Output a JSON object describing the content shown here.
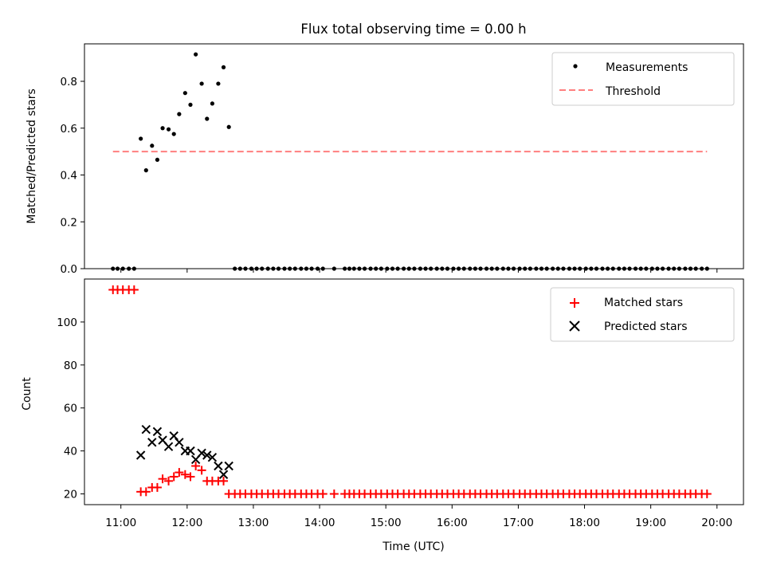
{
  "chart_data": {
    "type": "scatter",
    "title": "Flux total observing time = 0.00 h",
    "xlabel": "Time (UTC)",
    "x_ticks": [
      "11:00",
      "12:00",
      "13:00",
      "14:00",
      "15:00",
      "16:00",
      "17:00",
      "18:00",
      "19:00",
      "20:00"
    ],
    "x_range_hours": [
      10.45,
      20.4
    ],
    "panels": [
      {
        "id": "ratio",
        "ylabel": "Matched/Predicted stars",
        "ylim": [
          0,
          0.96
        ],
        "y_ticks": [
          "0.0",
          "0.2",
          "0.4",
          "0.6",
          "0.8"
        ],
        "y_tick_values": [
          0,
          0.2,
          0.4,
          0.6,
          0.8
        ],
        "legend_position": "top-right",
        "series": [
          {
            "name": "Measurements",
            "marker": "dot",
            "color": "#000000",
            "points": [
              [
                10.88,
                0
              ],
              [
                10.95,
                0
              ],
              [
                11.03,
                0
              ],
              [
                11.12,
                0
              ],
              [
                11.2,
                0
              ],
              [
                11.3,
                0.555
              ],
              [
                11.38,
                0.42
              ],
              [
                11.47,
                0.525
              ],
              [
                11.55,
                0.465
              ],
              [
                11.63,
                0.6
              ],
              [
                11.72,
                0.595
              ],
              [
                11.8,
                0.575
              ],
              [
                11.88,
                0.66
              ],
              [
                11.97,
                0.75
              ],
              [
                12.05,
                0.7
              ],
              [
                12.13,
                0.915
              ],
              [
                12.22,
                0.79
              ],
              [
                12.3,
                0.64
              ],
              [
                12.38,
                0.705
              ],
              [
                12.47,
                0.79
              ],
              [
                12.55,
                0.86
              ],
              [
                12.63,
                0.605
              ],
              [
                12.72,
                0
              ],
              [
                12.8,
                0
              ],
              [
                12.88,
                0
              ],
              [
                12.97,
                0
              ],
              [
                13.05,
                0
              ],
              [
                13.13,
                0
              ],
              [
                13.22,
                0
              ],
              [
                13.3,
                0
              ],
              [
                13.38,
                0
              ],
              [
                13.47,
                0
              ],
              [
                13.55,
                0
              ],
              [
                13.63,
                0
              ],
              [
                13.72,
                0
              ],
              [
                13.8,
                0
              ],
              [
                13.88,
                0
              ],
              [
                13.97,
                0
              ],
              [
                14.05,
                0
              ],
              [
                14.22,
                0
              ],
              [
                14.38,
                0
              ],
              [
                14.45,
                0
              ],
              [
                14.52,
                0
              ],
              [
                14.6,
                0
              ],
              [
                14.68,
                0
              ],
              [
                14.77,
                0
              ],
              [
                14.85,
                0
              ],
              [
                14.93,
                0
              ],
              [
                15.02,
                0
              ],
              [
                15.1,
                0
              ],
              [
                15.18,
                0
              ],
              [
                15.27,
                0
              ],
              [
                15.35,
                0
              ],
              [
                15.43,
                0
              ],
              [
                15.52,
                0
              ],
              [
                15.6,
                0
              ],
              [
                15.68,
                0
              ],
              [
                15.77,
                0
              ],
              [
                15.85,
                0
              ],
              [
                15.93,
                0
              ],
              [
                16.02,
                0
              ],
              [
                16.1,
                0
              ],
              [
                16.18,
                0
              ],
              [
                16.27,
                0
              ],
              [
                16.35,
                0
              ],
              [
                16.43,
                0
              ],
              [
                16.52,
                0
              ],
              [
                16.6,
                0
              ],
              [
                16.68,
                0
              ],
              [
                16.77,
                0
              ],
              [
                16.85,
                0
              ],
              [
                16.93,
                0
              ],
              [
                17.02,
                0
              ],
              [
                17.1,
                0
              ],
              [
                17.18,
                0
              ],
              [
                17.27,
                0
              ],
              [
                17.35,
                0
              ],
              [
                17.43,
                0
              ],
              [
                17.52,
                0
              ],
              [
                17.6,
                0
              ],
              [
                17.68,
                0
              ],
              [
                17.77,
                0
              ],
              [
                17.85,
                0
              ],
              [
                17.93,
                0
              ],
              [
                18.02,
                0
              ],
              [
                18.1,
                0
              ],
              [
                18.18,
                0
              ],
              [
                18.27,
                0
              ],
              [
                18.35,
                0
              ],
              [
                18.43,
                0
              ],
              [
                18.52,
                0
              ],
              [
                18.6,
                0
              ],
              [
                18.68,
                0
              ],
              [
                18.77,
                0
              ],
              [
                18.85,
                0
              ],
              [
                18.93,
                0
              ],
              [
                19.02,
                0
              ],
              [
                19.1,
                0
              ],
              [
                19.18,
                0
              ],
              [
                19.27,
                0
              ],
              [
                19.35,
                0
              ],
              [
                19.43,
                0
              ],
              [
                19.52,
                0
              ],
              [
                19.6,
                0
              ],
              [
                19.68,
                0
              ],
              [
                19.77,
                0
              ],
              [
                19.85,
                0
              ]
            ]
          },
          {
            "name": "Threshold",
            "marker": "dashed-line",
            "color": "#ff7f7f",
            "points": [
              [
                10.88,
                0.5
              ],
              [
                19.85,
                0.5
              ]
            ]
          }
        ]
      },
      {
        "id": "count",
        "ylabel": "Count",
        "ylim": [
          15,
          120
        ],
        "y_ticks": [
          "20",
          "40",
          "60",
          "80",
          "100"
        ],
        "y_tick_values": [
          20,
          40,
          60,
          80,
          100
        ],
        "legend_position": "top-right",
        "series": [
          {
            "name": "Matched stars",
            "marker": "plus",
            "color": "#ff0000",
            "points": [
              [
                10.88,
                115
              ],
              [
                10.95,
                115
              ],
              [
                11.03,
                115
              ],
              [
                11.12,
                115
              ],
              [
                11.2,
                115
              ],
              [
                11.3,
                21
              ],
              [
                11.38,
                21
              ],
              [
                11.47,
                23
              ],
              [
                11.55,
                23
              ],
              [
                11.63,
                27
              ],
              [
                11.72,
                26
              ],
              [
                11.8,
                28
              ],
              [
                11.88,
                30
              ],
              [
                11.97,
                29
              ],
              [
                12.05,
                28
              ],
              [
                12.13,
                33
              ],
              [
                12.22,
                31
              ],
              [
                12.3,
                26
              ],
              [
                12.38,
                26
              ],
              [
                12.47,
                26
              ],
              [
                12.55,
                26
              ],
              [
                12.63,
                20
              ],
              [
                12.72,
                20
              ],
              [
                12.8,
                20
              ],
              [
                12.88,
                20
              ],
              [
                12.97,
                20
              ],
              [
                13.05,
                20
              ],
              [
                13.13,
                20
              ],
              [
                13.22,
                20
              ],
              [
                13.3,
                20
              ],
              [
                13.38,
                20
              ],
              [
                13.47,
                20
              ],
              [
                13.55,
                20
              ],
              [
                13.63,
                20
              ],
              [
                13.72,
                20
              ],
              [
                13.8,
                20
              ],
              [
                13.88,
                20
              ],
              [
                13.97,
                20
              ],
              [
                14.05,
                20
              ],
              [
                14.22,
                20
              ],
              [
                14.38,
                20
              ],
              [
                14.45,
                20
              ],
              [
                14.52,
                20
              ],
              [
                14.6,
                20
              ],
              [
                14.68,
                20
              ],
              [
                14.77,
                20
              ],
              [
                14.85,
                20
              ],
              [
                14.93,
                20
              ],
              [
                15.02,
                20
              ],
              [
                15.1,
                20
              ],
              [
                15.18,
                20
              ],
              [
                15.27,
                20
              ],
              [
                15.35,
                20
              ],
              [
                15.43,
                20
              ],
              [
                15.52,
                20
              ],
              [
                15.6,
                20
              ],
              [
                15.68,
                20
              ],
              [
                15.77,
                20
              ],
              [
                15.85,
                20
              ],
              [
                15.93,
                20
              ],
              [
                16.02,
                20
              ],
              [
                16.1,
                20
              ],
              [
                16.18,
                20
              ],
              [
                16.27,
                20
              ],
              [
                16.35,
                20
              ],
              [
                16.43,
                20
              ],
              [
                16.52,
                20
              ],
              [
                16.6,
                20
              ],
              [
                16.68,
                20
              ],
              [
                16.77,
                20
              ],
              [
                16.85,
                20
              ],
              [
                16.93,
                20
              ],
              [
                17.02,
                20
              ],
              [
                17.1,
                20
              ],
              [
                17.18,
                20
              ],
              [
                17.27,
                20
              ],
              [
                17.35,
                20
              ],
              [
                17.43,
                20
              ],
              [
                17.52,
                20
              ],
              [
                17.6,
                20
              ],
              [
                17.68,
                20
              ],
              [
                17.77,
                20
              ],
              [
                17.85,
                20
              ],
              [
                17.93,
                20
              ],
              [
                18.02,
                20
              ],
              [
                18.1,
                20
              ],
              [
                18.18,
                20
              ],
              [
                18.27,
                20
              ],
              [
                18.35,
                20
              ],
              [
                18.43,
                20
              ],
              [
                18.52,
                20
              ],
              [
                18.6,
                20
              ],
              [
                18.68,
                20
              ],
              [
                18.77,
                20
              ],
              [
                18.85,
                20
              ],
              [
                18.93,
                20
              ],
              [
                19.02,
                20
              ],
              [
                19.1,
                20
              ],
              [
                19.18,
                20
              ],
              [
                19.27,
                20
              ],
              [
                19.35,
                20
              ],
              [
                19.43,
                20
              ],
              [
                19.52,
                20
              ],
              [
                19.6,
                20
              ],
              [
                19.68,
                20
              ],
              [
                19.77,
                20
              ],
              [
                19.85,
                20
              ]
            ]
          },
          {
            "name": "Predicted stars",
            "marker": "x",
            "color": "#000000",
            "points": [
              [
                11.3,
                38
              ],
              [
                11.38,
                50
              ],
              [
                11.47,
                44
              ],
              [
                11.55,
                49
              ],
              [
                11.63,
                45
              ],
              [
                11.72,
                42
              ],
              [
                11.8,
                47
              ],
              [
                11.88,
                44
              ],
              [
                11.97,
                40
              ],
              [
                12.05,
                40
              ],
              [
                12.13,
                36
              ],
              [
                12.22,
                39
              ],
              [
                12.3,
                38
              ],
              [
                12.38,
                37
              ],
              [
                12.47,
                33
              ],
              [
                12.55,
                29
              ],
              [
                12.63,
                33
              ]
            ]
          }
        ]
      }
    ]
  }
}
